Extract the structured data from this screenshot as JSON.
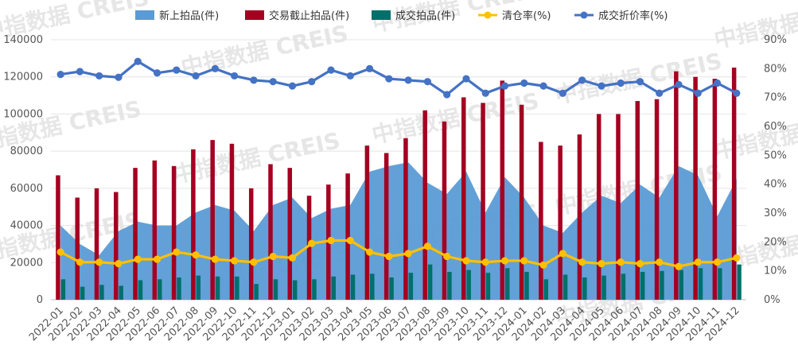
{
  "watermark": "中指数据 CREIS",
  "chart_data": {
    "type": "bar",
    "categories": [
      "2022-01",
      "2022-02",
      "2022-03",
      "2022-04",
      "2022-05",
      "2022-06",
      "2022-07",
      "2022-08",
      "2022-09",
      "2022-10",
      "2022-11",
      "2022-12",
      "2023-01",
      "2023-02",
      "2023-03",
      "2023-04",
      "2023-05",
      "2023-06",
      "2023-07",
      "2023-08",
      "2023-09",
      "2023-10",
      "2023-11",
      "2023-12",
      "2024-01",
      "2024-02",
      "2024-03",
      "2024-04",
      "2024-05",
      "2024-06",
      "2024-07",
      "2024-08",
      "2024-09",
      "2024-10",
      "2024-11",
      "2024-12"
    ],
    "y_left": {
      "ylim": [
        0,
        140000
      ],
      "ticks": [
        0,
        20000,
        40000,
        60000,
        80000,
        100000,
        120000,
        140000
      ]
    },
    "y_right": {
      "ylim": [
        0,
        90
      ],
      "ticks": [
        "0%",
        "10%",
        "20%",
        "30%",
        "40%",
        "50%",
        "60%",
        "70%",
        "80%",
        "90%"
      ]
    },
    "series": [
      {
        "name": "新上拍品(件)",
        "kind": "area",
        "axis": "left",
        "color": "#5b9bd5",
        "values": [
          40000,
          30000,
          24000,
          37000,
          42000,
          40000,
          40000,
          47000,
          51000,
          48000,
          37000,
          51000,
          55000,
          44000,
          49000,
          51000,
          69000,
          72000,
          74000,
          63000,
          57000,
          69000,
          47000,
          66000,
          55000,
          40000,
          36000,
          47000,
          56000,
          52000,
          62000,
          55000,
          72000,
          67000,
          45000,
          65000
        ]
      },
      {
        "name": "交易截止拍品(件)",
        "kind": "bar",
        "axis": "left",
        "color": "#a50021",
        "values": [
          67000,
          55000,
          60000,
          58000,
          71000,
          75000,
          72000,
          81000,
          86000,
          84000,
          60000,
          73000,
          71000,
          56000,
          62000,
          68000,
          83000,
          79000,
          87000,
          102000,
          96000,
          109000,
          106000,
          118000,
          105000,
          85000,
          83000,
          89000,
          100000,
          100000,
          107000,
          108000,
          123000,
          120000,
          119000,
          125000
        ]
      },
      {
        "name": "成交拍品(件)",
        "kind": "bar",
        "axis": "left",
        "color": "#00706b",
        "values": [
          11000,
          7000,
          8000,
          7500,
          10500,
          11000,
          12000,
          13000,
          12500,
          12500,
          8500,
          11000,
          10500,
          11000,
          12500,
          13500,
          14000,
          12000,
          14500,
          19000,
          15000,
          16000,
          14500,
          17000,
          15000,
          11000,
          13500,
          12000,
          13000,
          14000,
          15000,
          15500,
          16000,
          17000,
          17000,
          19000
        ]
      },
      {
        "name": "清仓率(%)",
        "kind": "line",
        "axis": "right",
        "color": "#ffc000",
        "values": [
          16.5,
          13,
          13,
          12.5,
          14,
          14,
          16.5,
          15.5,
          14,
          13.5,
          13,
          15,
          14.5,
          19.5,
          20.5,
          20.5,
          16.5,
          15,
          16,
          18.5,
          15,
          13.5,
          13,
          13.5,
          13.5,
          12,
          16,
          13,
          12.5,
          13,
          12.5,
          13,
          11.5,
          13,
          13,
          14.5
        ]
      },
      {
        "name": "成交折价率(%)",
        "kind": "line",
        "axis": "right",
        "color": "#4472c4",
        "values": [
          78,
          79,
          77.5,
          77,
          82.5,
          78.5,
          79.5,
          77.5,
          80,
          77.5,
          76,
          75.5,
          74,
          75.5,
          79.5,
          77.5,
          80,
          76.5,
          76,
          75.5,
          71,
          76.5,
          71.5,
          74,
          75,
          74,
          71.5,
          76,
          74,
          75,
          75.5,
          71.5,
          74.5,
          71.5,
          75,
          71.5
        ]
      }
    ]
  }
}
